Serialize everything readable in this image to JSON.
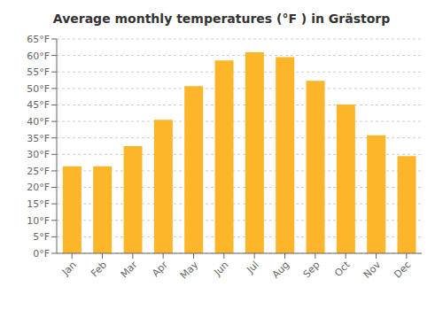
{
  "chart_data": {
    "type": "bar",
    "title": "Average monthly temperatures (°F ) in Grästorp",
    "categories": [
      "Jan",
      "Feb",
      "Mar",
      "Apr",
      "May",
      "Jun",
      "Jul",
      "Aug",
      "Sep",
      "Oct",
      "Nov",
      "Dec"
    ],
    "values": [
      26.4,
      26.4,
      32.5,
      40.5,
      50.7,
      58.5,
      61.0,
      59.5,
      52.3,
      45.1,
      35.8,
      29.5
    ],
    "color": "#FDB52A",
    "ylim": [
      0,
      65
    ],
    "yticks": [
      {
        "value": 0,
        "label": "0°F"
      },
      {
        "value": 5,
        "label": "5°F"
      },
      {
        "value": 10,
        "label": "10°F"
      },
      {
        "value": 15,
        "label": "15°F"
      },
      {
        "value": 20,
        "label": "20°F"
      },
      {
        "value": 25,
        "label": "25°F"
      },
      {
        "value": 30,
        "label": "30°F"
      },
      {
        "value": 35,
        "label": "35°F"
      },
      {
        "value": 40,
        "label": "40°F"
      },
      {
        "value": 45,
        "label": "45°F"
      },
      {
        "value": 50,
        "label": "50°F"
      },
      {
        "value": 55,
        "label": "55°F"
      },
      {
        "value": 60,
        "label": "60°F"
      },
      {
        "value": 65,
        "label": "65°F"
      }
    ],
    "grid": true
  }
}
